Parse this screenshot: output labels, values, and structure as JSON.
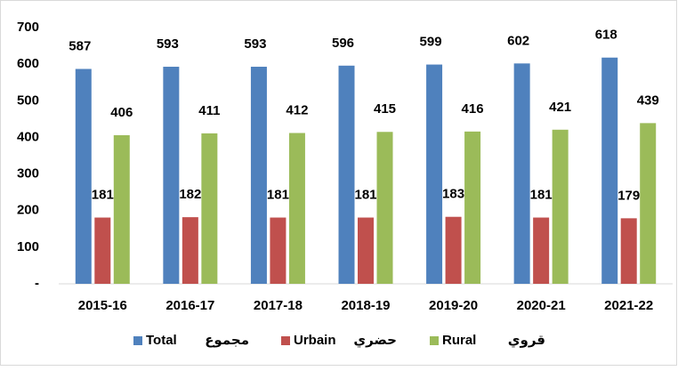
{
  "chart_data": {
    "type": "bar",
    "categories": [
      "2015-16",
      "2016-17",
      "2017-18",
      "2018-19",
      "2019-20",
      "2020-21",
      "2021-22"
    ],
    "series": [
      {
        "name": "Total",
        "name_ar": "مجموع",
        "color": "#4f81bd",
        "values": [
          587,
          593,
          593,
          596,
          599,
          602,
          618
        ]
      },
      {
        "name": "Urbain",
        "name_ar": "حضري",
        "color": "#c0504d",
        "values": [
          181,
          182,
          181,
          181,
          183,
          181,
          179
        ]
      },
      {
        "name": "Rural",
        "name_ar": "قروي",
        "color": "#9bbb59",
        "values": [
          406,
          411,
          412,
          415,
          416,
          421,
          439
        ]
      }
    ],
    "ylim": [
      0,
      700
    ],
    "yticks": [
      {
        "value": 0,
        "label": "-"
      },
      100,
      200,
      300,
      400,
      500,
      600,
      700
    ],
    "grid": false,
    "legend": "bottom"
  }
}
